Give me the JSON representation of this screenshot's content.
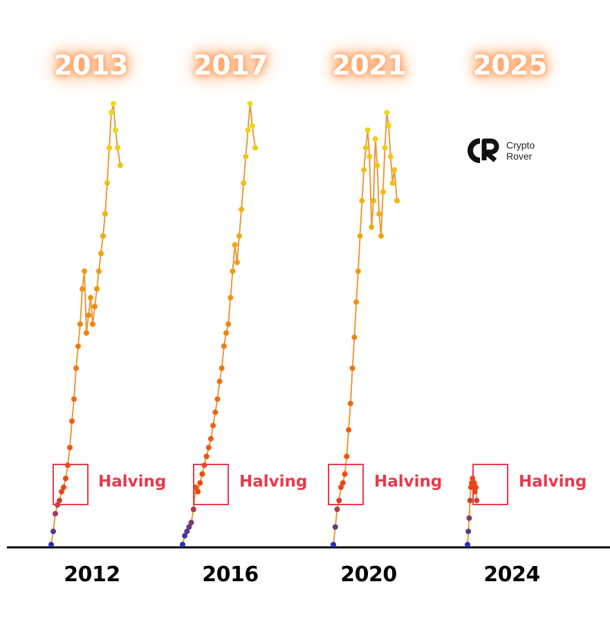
{
  "peak_years": [
    "2013",
    "2017",
    "2021",
    "2025"
  ],
  "halving_years": [
    "2012",
    "2016",
    "2020",
    "2024"
  ],
  "halving_label": "Halving",
  "logo": {
    "line1": "Crypto",
    "line2": "Rover",
    "icon": "cr-monogram-icon"
  },
  "colors": {
    "halving_red": "#e8394a",
    "line": "#e89a3a",
    "low": "#2233bb",
    "mid": "#ee4411",
    "high": "#eedd11",
    "glow": "#ff8a3d"
  },
  "chart_data": {
    "type": "line",
    "title": "",
    "xlabel": "",
    "ylabel": "",
    "note": "Four aligned market cycles; relative price progression from cycle start (0) to local high (1); each cycle has a Halving marker",
    "series": [
      {
        "cycle_start": "2012",
        "peak": "2013",
        "x": [
          0,
          0.03,
          0.06,
          0.09,
          0.12,
          0.15,
          0.18,
          0.21,
          0.24,
          0.27,
          0.3,
          0.33,
          0.36,
          0.39,
          0.42,
          0.45,
          0.48,
          0.51,
          0.54,
          0.57,
          0.6,
          0.63,
          0.66,
          0.69,
          0.72,
          0.75,
          0.78,
          0.81,
          0.84,
          0.87,
          0.9,
          0.93,
          0.96,
          1.0
        ],
        "y": [
          0.0,
          0.03,
          0.07,
          0.09,
          0.1,
          0.12,
          0.13,
          0.15,
          0.18,
          0.22,
          0.28,
          0.33,
          0.4,
          0.45,
          0.5,
          0.58,
          0.62,
          0.48,
          0.52,
          0.56,
          0.5,
          0.54,
          0.58,
          0.62,
          0.66,
          0.7,
          0.75,
          0.82,
          0.9,
          0.98,
          1.0,
          0.94,
          0.9,
          0.86
        ]
      },
      {
        "cycle_start": "2016",
        "peak": "2017",
        "x": [
          0,
          0.03,
          0.06,
          0.09,
          0.12,
          0.15,
          0.18,
          0.21,
          0.24,
          0.27,
          0.3,
          0.33,
          0.36,
          0.39,
          0.42,
          0.45,
          0.48,
          0.51,
          0.54,
          0.57,
          0.6,
          0.63,
          0.66,
          0.69,
          0.72,
          0.75,
          0.78,
          0.81,
          0.84,
          0.87,
          0.9,
          0.93,
          0.96,
          1.0
        ],
        "y": [
          0.0,
          0.02,
          0.03,
          0.04,
          0.05,
          0.08,
          0.13,
          0.12,
          0.14,
          0.16,
          0.18,
          0.2,
          0.22,
          0.24,
          0.27,
          0.3,
          0.33,
          0.37,
          0.4,
          0.45,
          0.48,
          0.5,
          0.56,
          0.62,
          0.68,
          0.64,
          0.7,
          0.76,
          0.82,
          0.88,
          0.94,
          1.0,
          0.95,
          0.9
        ]
      },
      {
        "cycle_start": "2020",
        "peak": "2021",
        "x": [
          0,
          0.03,
          0.06,
          0.09,
          0.12,
          0.15,
          0.18,
          0.21,
          0.24,
          0.27,
          0.3,
          0.33,
          0.36,
          0.39,
          0.42,
          0.45,
          0.48,
          0.51,
          0.54,
          0.57,
          0.6,
          0.63,
          0.66,
          0.69,
          0.72,
          0.75,
          0.78,
          0.81,
          0.84,
          0.87,
          0.9,
          0.93,
          0.96,
          1.0
        ],
        "y": [
          0.0,
          0.04,
          0.08,
          0.1,
          0.13,
          0.14,
          0.16,
          0.2,
          0.26,
          0.32,
          0.4,
          0.47,
          0.55,
          0.62,
          0.7,
          0.78,
          0.85,
          0.9,
          0.94,
          0.88,
          0.72,
          0.78,
          0.92,
          0.86,
          0.75,
          0.7,
          0.8,
          0.9,
          0.98,
          0.95,
          0.88,
          0.82,
          0.85,
          0.78
        ]
      },
      {
        "cycle_start": "2024",
        "peak": "2025",
        "x": [
          0,
          0.03,
          0.06,
          0.09,
          0.12,
          0.15,
          0.18,
          0.21,
          0.24,
          0.27,
          0.3,
          0.33
        ],
        "y": [
          0.0,
          0.03,
          0.06,
          0.1,
          0.13,
          0.14,
          0.15,
          0.13,
          0.14,
          0.12,
          0.13,
          0.1
        ]
      }
    ]
  }
}
